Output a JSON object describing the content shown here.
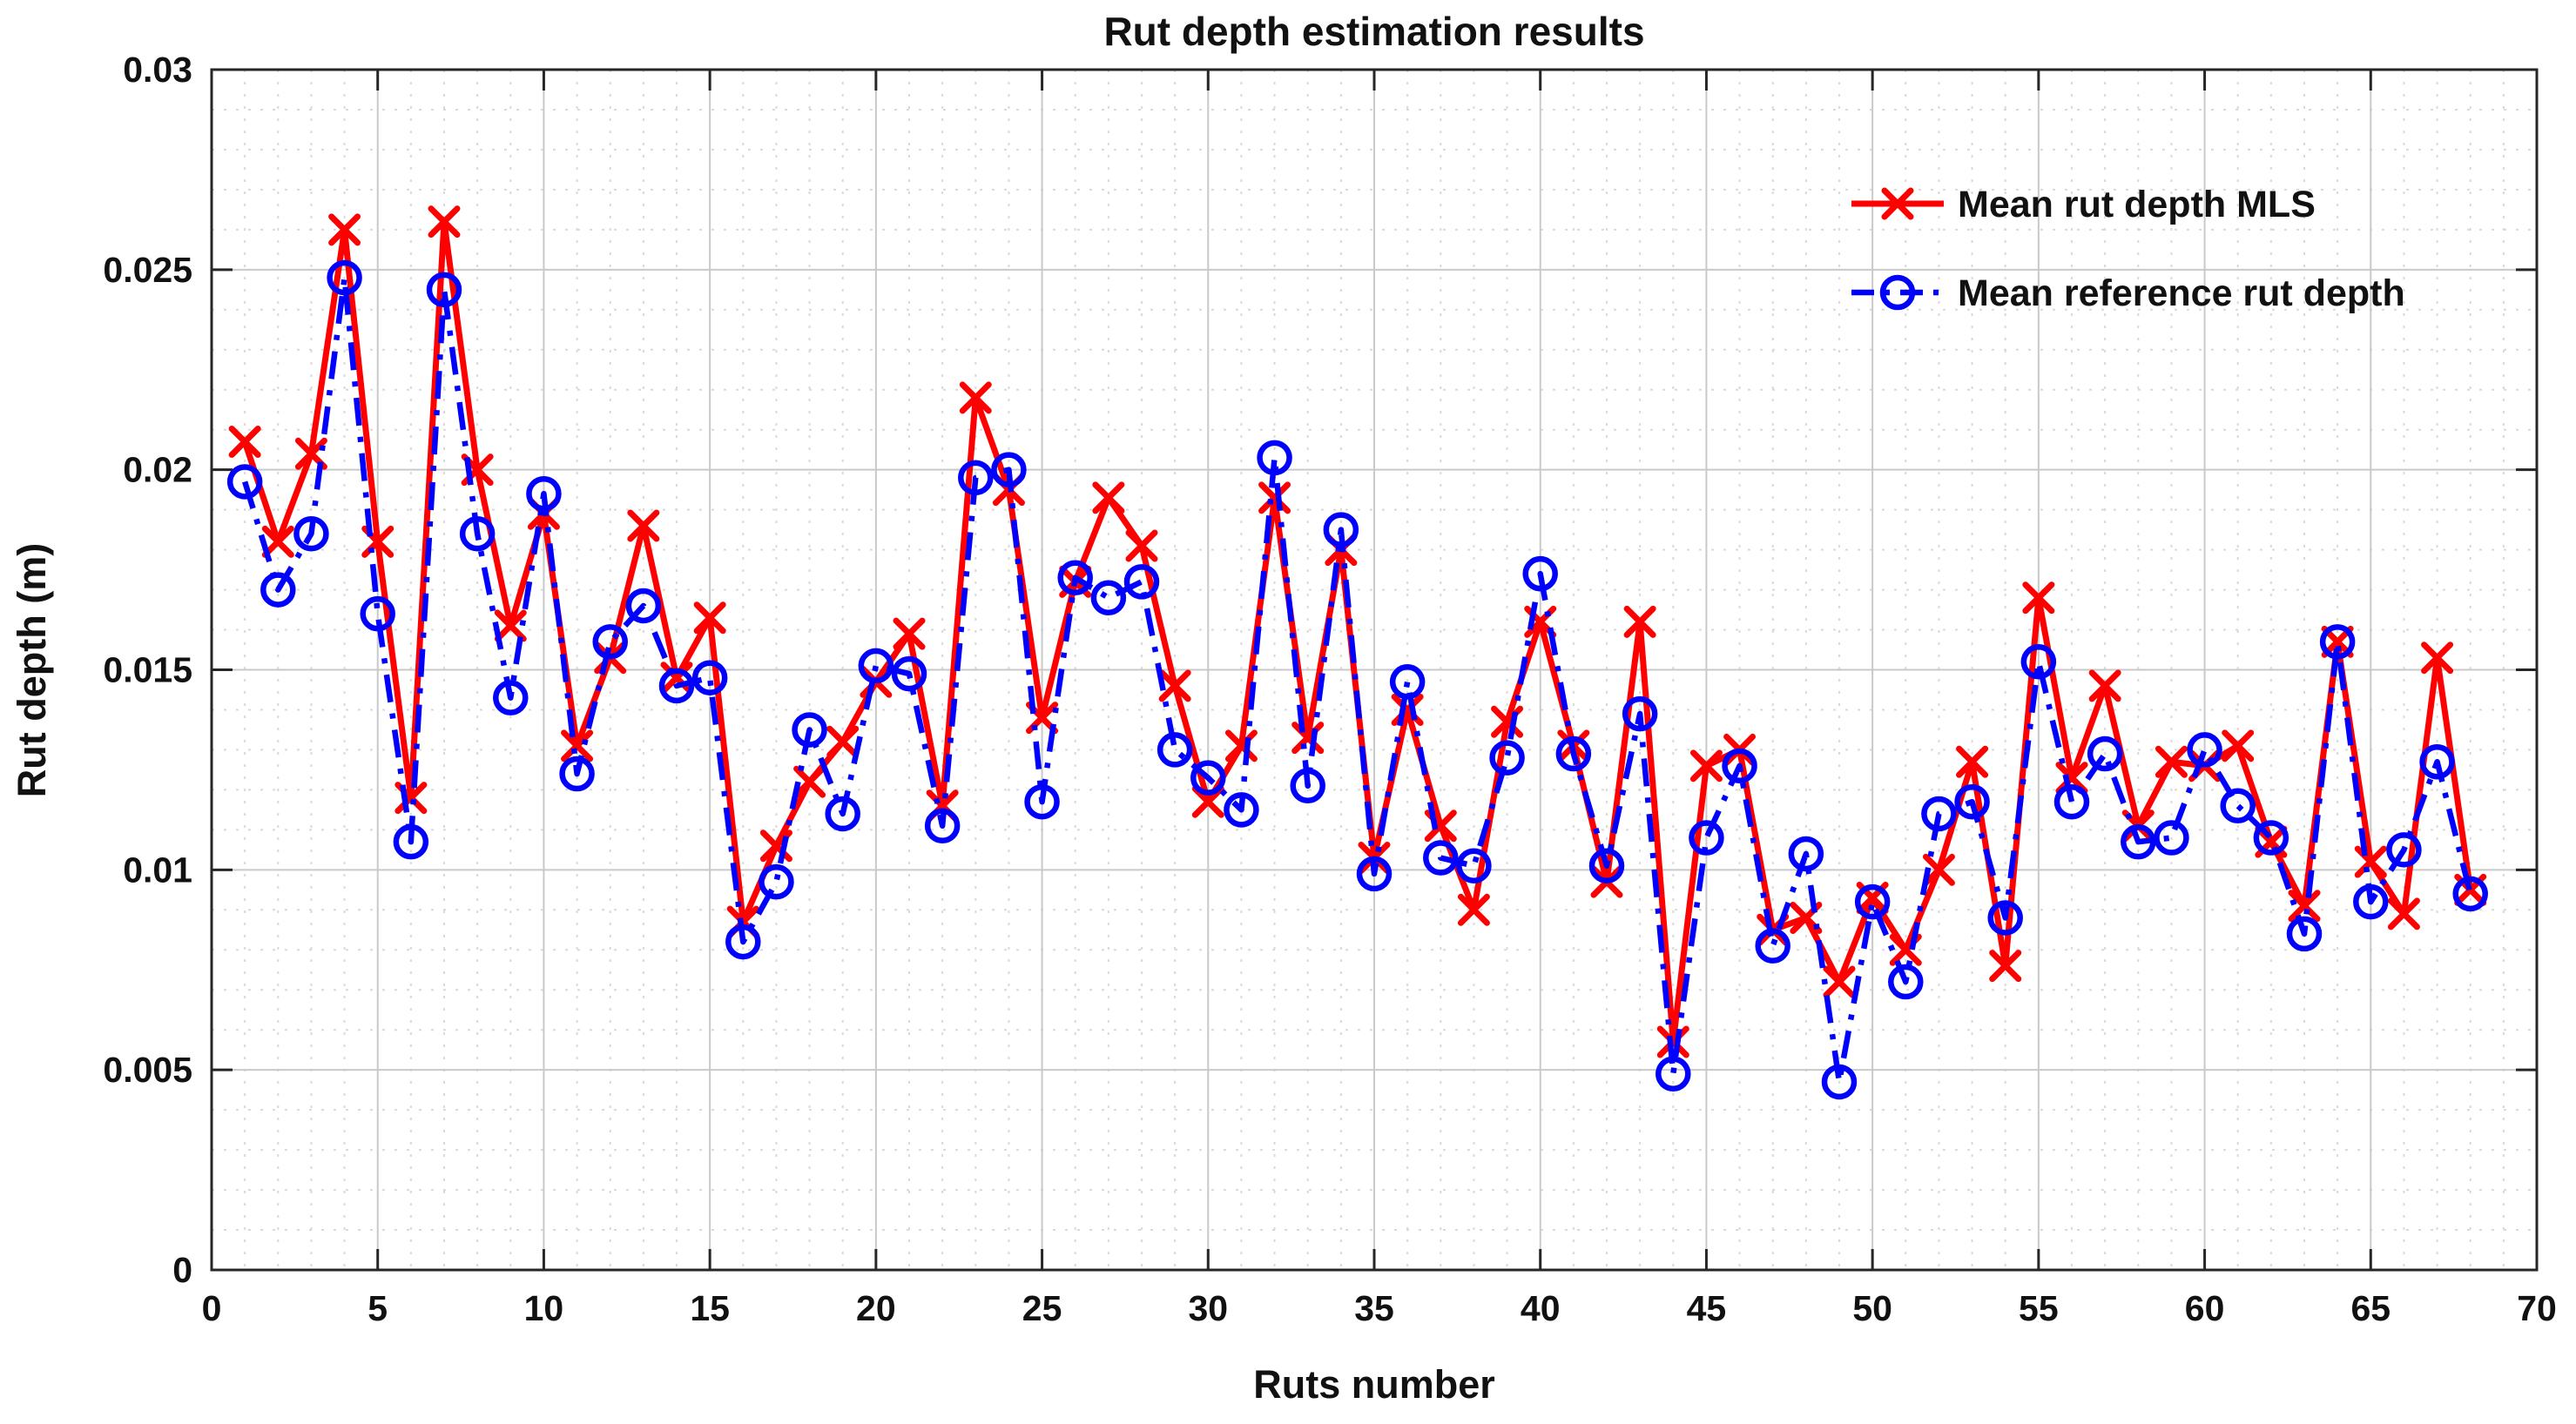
{
  "page": {
    "background": "#ffffff"
  },
  "chart_data": {
    "type": "line",
    "title": "Rut depth estimation results",
    "xlabel": "Ruts number",
    "ylabel": "Rut depth (m)",
    "xlim": [
      0,
      70
    ],
    "ylim": [
      0,
      0.03
    ],
    "xticks": [
      0,
      5,
      10,
      15,
      20,
      25,
      30,
      35,
      40,
      45,
      50,
      55,
      60,
      65,
      70
    ],
    "xtick_labels": [
      "0",
      "5",
      "10",
      "15",
      "20",
      "25",
      "30",
      "35",
      "40",
      "45",
      "50",
      "55",
      "60",
      "65",
      "70"
    ],
    "yticks": [
      0,
      0.005,
      0.01,
      0.015,
      0.02,
      0.025,
      0.03
    ],
    "ytick_labels": [
      "0",
      "0.005",
      "0.01",
      "0.015",
      "0.02",
      "0.025",
      "0.03"
    ],
    "grid": "on",
    "minor_grid": "on",
    "legend_position": "upper-right",
    "axis_color": "#262626",
    "major_grid_color": "#c9c9c9",
    "minor_grid_color": "#d9d9d9",
    "x": [
      1,
      2,
      3,
      4,
      5,
      6,
      7,
      8,
      9,
      10,
      11,
      12,
      13,
      14,
      15,
      16,
      17,
      18,
      19,
      20,
      21,
      22,
      23,
      24,
      25,
      26,
      27,
      28,
      29,
      30,
      31,
      32,
      33,
      34,
      35,
      36,
      37,
      38,
      39,
      40,
      41,
      42,
      43,
      44,
      45,
      46,
      47,
      48,
      49,
      50,
      51,
      52,
      53,
      54,
      55,
      56,
      57,
      58,
      59,
      60,
      61,
      62,
      63,
      64,
      65,
      66,
      67,
      68
    ],
    "series": [
      {
        "name": "Mean rut depth MLS",
        "color": "#ff0000",
        "line_style": "solid",
        "marker": "x",
        "values": [
          0.0207,
          0.0182,
          0.0204,
          0.026,
          0.0182,
          0.0118,
          0.0262,
          0.02,
          0.0161,
          0.0189,
          0.0131,
          0.0153,
          0.0186,
          0.0148,
          0.0163,
          0.0087,
          0.0106,
          0.0122,
          0.0132,
          0.0147,
          0.0159,
          0.0116,
          0.0218,
          0.0195,
          0.0138,
          0.0172,
          0.0193,
          0.0181,
          0.0146,
          0.0117,
          0.0131,
          0.0193,
          0.0133,
          0.018,
          0.0103,
          0.014,
          0.0111,
          0.009,
          0.0137,
          0.0162,
          0.0131,
          0.0097,
          0.0162,
          0.0057,
          0.0126,
          0.013,
          0.0085,
          0.0088,
          0.0072,
          0.0093,
          0.008,
          0.01,
          0.0127,
          0.0076,
          0.0168,
          0.0123,
          0.0146,
          0.0111,
          0.0127,
          0.0126,
          0.0131,
          0.0107,
          0.0091,
          0.0157,
          0.0102,
          0.0089,
          0.0153,
          0.0095
        ]
      },
      {
        "name": "Mean reference rut depth",
        "color": "#0000ff",
        "line_style": "dash-dot",
        "marker": "circle",
        "values": [
          0.0197,
          0.017,
          0.0184,
          0.0248,
          0.0164,
          0.0107,
          0.0245,
          0.0184,
          0.0143,
          0.0194,
          0.0124,
          0.0157,
          0.0166,
          0.0146,
          0.0148,
          0.0082,
          0.0097,
          0.0135,
          0.0114,
          0.0151,
          0.0149,
          0.0111,
          0.0198,
          0.02,
          0.0117,
          0.0173,
          0.0168,
          0.0172,
          0.013,
          0.0123,
          0.0115,
          0.0203,
          0.0121,
          0.0185,
          0.0099,
          0.0147,
          0.0103,
          0.0101,
          0.0128,
          0.0174,
          0.0129,
          0.0101,
          0.0139,
          0.0049,
          0.0108,
          0.0126,
          0.0081,
          0.0104,
          0.0047,
          0.0092,
          0.0072,
          0.0114,
          0.0117,
          0.0088,
          0.0152,
          0.0117,
          0.0129,
          0.0107,
          0.0108,
          0.013,
          0.0116,
          0.0108,
          0.0084,
          0.0157,
          0.0092,
          0.0105,
          0.0127,
          0.0094
        ]
      }
    ]
  }
}
